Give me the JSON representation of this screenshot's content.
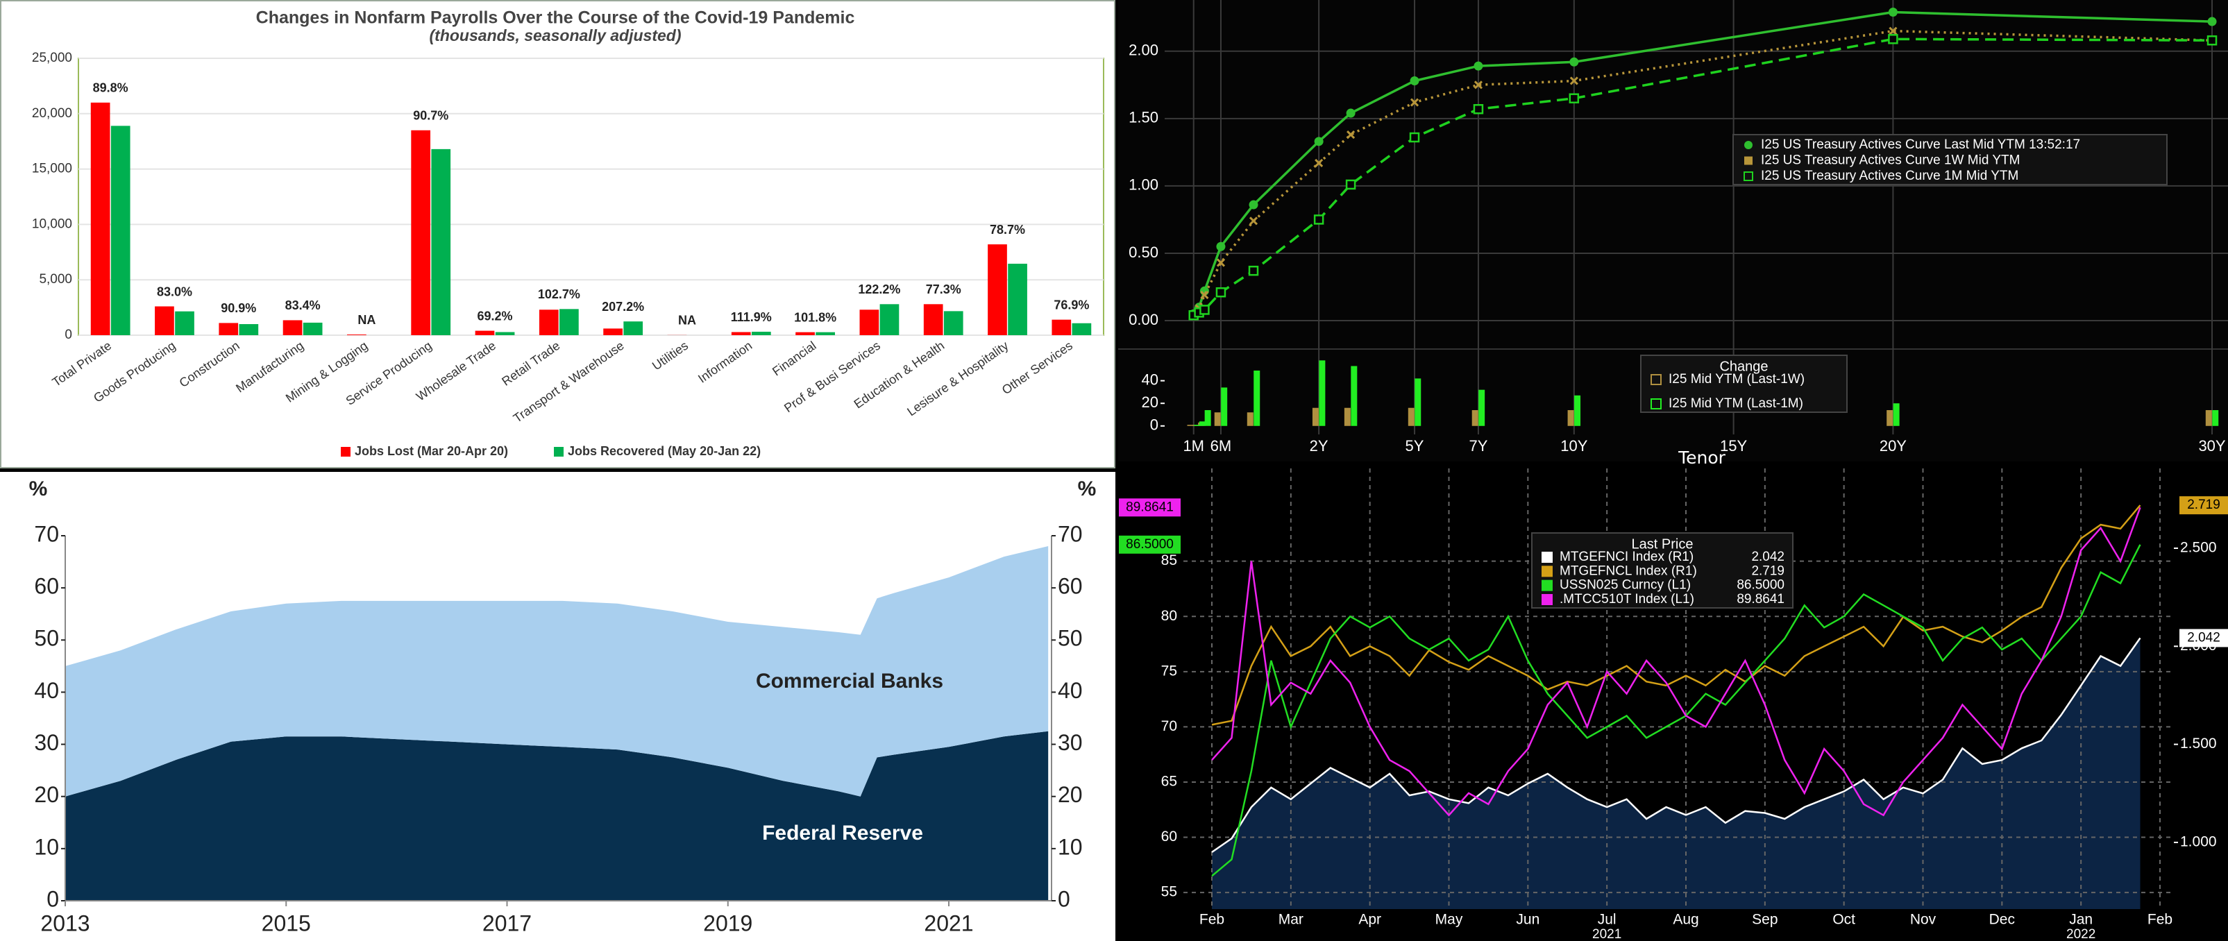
{
  "chart_data": [
    {
      "type": "bar",
      "title": "Changes in Nonfarm Payrolls Over the Course of the Covid-19 Pandemic",
      "subtitle": "(thousands, seasonally adjusted)",
      "categories": [
        "Total Private",
        "Goods Producing",
        "Construction",
        "Manufacturing",
        "Mining & Logging",
        "Service Producing",
        "Wholesale Trade",
        "Retail Trade",
        "Transport & Warehouse",
        "Utilities",
        "Information",
        "Financial",
        "Prof & Busi Services",
        "Education & Health",
        "Lesisure & Hospitality",
        "Other Services"
      ],
      "series": [
        {
          "name": "Jobs Lost (Mar 20-Apr 20)",
          "color": "#ff0000",
          "values": [
            21000,
            2600,
            1100,
            1350,
            60,
            18500,
            400,
            2300,
            600,
            10,
            280,
            270,
            2300,
            2800,
            8200,
            1400
          ]
        },
        {
          "name": "Jobs Recovered (May 20-Jan 22)",
          "color": "#00b050",
          "values": [
            18900,
            2150,
            1000,
            1130,
            null,
            16800,
            280,
            2360,
            1240,
            null,
            310,
            270,
            2800,
            2170,
            6450,
            1080
          ]
        }
      ],
      "recovery_labels": [
        "89.8%",
        "83.0%",
        "90.9%",
        "83.4%",
        "NA",
        "90.7%",
        "69.2%",
        "102.7%",
        "207.2%",
        "NA",
        "111.9%",
        "101.8%",
        "122.2%",
        "77.3%",
        "78.7%",
        "76.9%"
      ],
      "ylim": [
        0,
        25000
      ],
      "yticks": [
        0,
        {
          "value": 5000,
          "label": "5,000"
        },
        {
          "value": 10000,
          "label": "10,000"
        },
        {
          "value": 15000,
          "label": "15,000"
        },
        {
          "value": 20000,
          "label": "20,000"
        },
        {
          "value": 25000,
          "label": "25,000"
        }
      ],
      "grid": true,
      "legend": "bottom"
    },
    {
      "type": "line",
      "x": [
        0.0833,
        0.1667,
        0.25,
        0.5,
        1,
        2,
        3,
        5,
        7,
        10,
        20,
        30
      ],
      "series": [
        {
          "name": "I25 US Treasury Actives Curve Last Mid YTM 13:52:17",
          "color": "#2fbf2f",
          "marker": "circle",
          "dash": "solid",
          "values": [
            0.05,
            0.1,
            0.22,
            0.55,
            0.86,
            1.33,
            1.54,
            1.78,
            1.89,
            1.92,
            2.29,
            2.22
          ]
        },
        {
          "name": "I25 US Treasury Actives Curve 1W Mid YTM",
          "color": "#b8963a",
          "marker": "x",
          "dash": "dotted",
          "values": [
            0.04,
            0.09,
            0.19,
            0.43,
            0.74,
            1.17,
            1.38,
            1.62,
            1.75,
            1.78,
            2.15,
            2.08
          ]
        },
        {
          "name": "I25 US Treasury Actives Curve 1M Mid YTM",
          "color": "#1fd21f",
          "marker": "square",
          "dash": "dashed",
          "values": [
            0.04,
            0.06,
            0.08,
            0.21,
            0.37,
            0.75,
            1.01,
            1.36,
            1.57,
            1.65,
            2.09,
            2.08
          ]
        }
      ],
      "xlim": [
        -0.36,
        30.5
      ],
      "xticks": [
        {
          "value": 0.0833,
          "label": "1M"
        },
        {
          "value": 0.5,
          "label": "6M"
        },
        {
          "value": 2,
          "label": "2Y"
        },
        {
          "value": 5,
          "label": "5Y"
        },
        {
          "value": 7,
          "label": "7Y"
        },
        {
          "value": 10,
          "label": "10Y"
        },
        {
          "value": 15,
          "label": "15Y"
        },
        {
          "value": 20,
          "label": "20Y"
        },
        {
          "value": 30,
          "label": "30Y"
        }
      ],
      "ylim": [
        -0.17,
        2.38
      ],
      "yticks": [
        {
          "value": 0,
          "label": "0.00"
        },
        {
          "value": 0.5,
          "label": "0.50"
        },
        {
          "value": 1,
          "label": "1.00"
        },
        {
          "value": 1.5,
          "label": "1.50"
        },
        {
          "value": 2,
          "label": "2.00"
        }
      ],
      "grid": true,
      "legend": "right"
    },
    {
      "type": "bar",
      "legend_title": "Change",
      "x": [
        0.0833,
        0.1667,
        0.25,
        0.5,
        1,
        2,
        3,
        5,
        7,
        10,
        20,
        30
      ],
      "series": [
        {
          "name": "I25 Mid YTM (Last-1W)",
          "color": "#b09040",
          "values": [
            1,
            1,
            3,
            12,
            12,
            16,
            16,
            16,
            14,
            14,
            14,
            14
          ]
        },
        {
          "name": "I25 Mid YTM (Last-1M)",
          "color": "#22ee22",
          "values": [
            1,
            4,
            14,
            34,
            49,
            58,
            53,
            42,
            32,
            27,
            20,
            14
          ]
        }
      ],
      "xlim": [
        -0.36,
        30.5
      ],
      "x_label": "Tenor",
      "ylim": [
        -7.5,
        62.5
      ],
      "yticks": [
        0,
        20,
        40
      ],
      "grid": false,
      "legend": "upper center"
    },
    {
      "type": "area",
      "stacked": true,
      "x": [
        2013,
        2013.5,
        2014,
        2014.5,
        2015,
        2015.5,
        2016,
        2016.5,
        2017,
        2017.5,
        2018,
        2018.5,
        2019,
        2019.5,
        2020,
        2020.2,
        2020.35,
        2020.5,
        2021,
        2021.5,
        2021.9
      ],
      "series": [
        {
          "name": "Federal Reserve",
          "color": "#08304f",
          "values": [
            20,
            23,
            27,
            30.5,
            31.5,
            31.5,
            31,
            30.5,
            30,
            29.5,
            29,
            27.5,
            25.5,
            23,
            21,
            20,
            27.5,
            28,
            29.5,
            31.5,
            32.5
          ]
        },
        {
          "name": "Commercial Banks",
          "color": "#a9cfee",
          "values": [
            25,
            25,
            25,
            25,
            25.5,
            26,
            26.5,
            27,
            27.5,
            28,
            28,
            28,
            28,
            29.5,
            30.5,
            31,
            30.5,
            31,
            32.5,
            34.5,
            35.5
          ]
        }
      ],
      "xlim": [
        2013,
        2021.93
      ],
      "xticks": [
        2013,
        2015,
        2017,
        2019,
        2021
      ],
      "ylim": [
        0,
        70
      ],
      "yticks": [
        0,
        10,
        20,
        30,
        40,
        50,
        60,
        70
      ],
      "y_label": "%",
      "right_axis_labels": true
    },
    {
      "type": "line",
      "legend_title": "Last Price",
      "categories": [
        "Feb",
        null,
        null,
        null,
        "Mar",
        null,
        null,
        null,
        "Apr",
        null,
        null,
        null,
        "May",
        null,
        null,
        null,
        "Jun",
        null,
        null,
        null,
        "Jul",
        null,
        null,
        null,
        "Aug",
        null,
        null,
        null,
        "Sep",
        null,
        null,
        null,
        "Oct",
        null,
        null,
        null,
        "Nov",
        null,
        null,
        null,
        "Dec",
        null,
        null,
        null,
        "Jan",
        null,
        null,
        null,
        "Feb"
      ],
      "year_labels": [
        "2021",
        "2022"
      ],
      "series": [
        {
          "name": "MTGEFNCI Index (R1)",
          "color": "#ffffff",
          "axis": "y2",
          "fill": "#0c2444",
          "values": [
            0.95,
            1.02,
            1.18,
            1.28,
            1.22,
            1.3,
            1.38,
            1.33,
            1.28,
            1.35,
            1.24,
            1.26,
            1.22,
            1.2,
            1.28,
            1.24,
            1.3,
            1.35,
            1.28,
            1.22,
            1.18,
            1.22,
            1.12,
            1.18,
            1.14,
            1.18,
            1.1,
            1.16,
            1.15,
            1.12,
            1.18,
            1.22,
            1.26,
            1.32,
            1.22,
            1.28,
            1.25,
            1.32,
            1.48,
            1.4,
            1.42,
            1.48,
            1.52,
            1.65,
            1.8,
            1.95,
            1.9,
            2.042,
            null
          ],
          "value_labels": [
            null,
            null,
            null,
            null,
            null,
            null,
            null,
            null,
            null,
            null,
            null,
            null,
            null,
            null,
            null,
            null,
            null,
            null,
            null,
            null,
            null,
            null,
            null,
            null,
            null,
            null,
            null,
            null,
            null,
            null,
            null,
            null,
            null,
            null,
            null,
            null,
            null,
            null,
            null,
            null,
            null,
            null,
            null,
            null,
            null,
            null,
            null,
            "2.042",
            null
          ]
        },
        {
          "name": "MTGEFNCL Index (R1)",
          "color": "#d4a017",
          "axis": "y2",
          "values": [
            1.6,
            1.62,
            1.9,
            2.1,
            1.95,
            2.0,
            2.1,
            1.95,
            2.0,
            1.95,
            1.85,
            1.98,
            1.92,
            1.88,
            1.95,
            1.9,
            1.85,
            1.78,
            1.82,
            1.8,
            1.85,
            1.9,
            1.82,
            1.8,
            1.85,
            1.8,
            1.88,
            1.82,
            1.9,
            1.85,
            1.95,
            2.0,
            2.05,
            2.1,
            2.0,
            2.15,
            2.08,
            2.1,
            2.05,
            2.02,
            2.08,
            2.15,
            2.2,
            2.4,
            2.55,
            2.62,
            2.6,
            2.719,
            null
          ],
          "value_labels": [
            null,
            null,
            null,
            null,
            null,
            null,
            null,
            null,
            null,
            null,
            null,
            null,
            null,
            null,
            null,
            null,
            null,
            null,
            null,
            null,
            null,
            null,
            null,
            null,
            null,
            null,
            null,
            null,
            null,
            null,
            null,
            null,
            null,
            null,
            null,
            null,
            null,
            null,
            null,
            null,
            null,
            null,
            null,
            null,
            null,
            null,
            null,
            "2.719",
            null
          ]
        },
        {
          "name": "USSN025 Curncy (L1)",
          "color": "#22dd22",
          "values": [
            56.5,
            58,
            66,
            76,
            70,
            74,
            78,
            80,
            79,
            80,
            78,
            77,
            78,
            76,
            77,
            80,
            76,
            73,
            71,
            69,
            70,
            71,
            69,
            70,
            71,
            73,
            72,
            74,
            76,
            78,
            81,
            79,
            80,
            82,
            81,
            80,
            79,
            76,
            78,
            79,
            77,
            78,
            76,
            78,
            80,
            84,
            83,
            86.5,
            null
          ],
          "value_labels": [
            null,
            null,
            null,
            null,
            null,
            null,
            null,
            null,
            null,
            null,
            null,
            null,
            null,
            null,
            null,
            null,
            null,
            null,
            null,
            null,
            null,
            null,
            null,
            null,
            null,
            null,
            null,
            null,
            null,
            null,
            null,
            null,
            null,
            null,
            null,
            null,
            null,
            null,
            null,
            null,
            null,
            null,
            null,
            null,
            null,
            null,
            null,
            "86.5000",
            null
          ]
        },
        {
          "name": ".MTCC510T Index (L1)",
          "color": "#ee22ee",
          "values": [
            67,
            69,
            85,
            72,
            74,
            73,
            76,
            74,
            70,
            67,
            66,
            64,
            62,
            64,
            63,
            66,
            68,
            72,
            74,
            70,
            75,
            73,
            76,
            74,
            71,
            70,
            73,
            76,
            72,
            67,
            64,
            68,
            66,
            63,
            62,
            65,
            67,
            69,
            72,
            70,
            68,
            73,
            76,
            80,
            86,
            88,
            85,
            89.8641,
            null
          ],
          "value_labels": [
            null,
            null,
            null,
            null,
            null,
            null,
            null,
            null,
            null,
            null,
            null,
            null,
            null,
            null,
            null,
            null,
            null,
            null,
            null,
            null,
            null,
            null,
            null,
            null,
            null,
            null,
            null,
            null,
            null,
            null,
            null,
            null,
            null,
            null,
            null,
            null,
            null,
            null,
            null,
            null,
            null,
            null,
            null,
            null,
            null,
            null,
            null,
            "89.8641",
            null
          ]
        }
      ],
      "ylim": [
        53.5,
        93.4
      ],
      "yticks": [
        55,
        60,
        65,
        70,
        75,
        80,
        85
      ],
      "y2lim": [
        0.66,
        2.907
      ],
      "y2ticks": [
        {
          "value": 1,
          "label": "1.000"
        },
        {
          "value": 1.5,
          "label": "1.500"
        },
        {
          "value": 2,
          "label": "2.000"
        },
        {
          "value": 2.5,
          "label": "2.500"
        }
      ],
      "grid": true,
      "legend": "upper center"
    }
  ]
}
